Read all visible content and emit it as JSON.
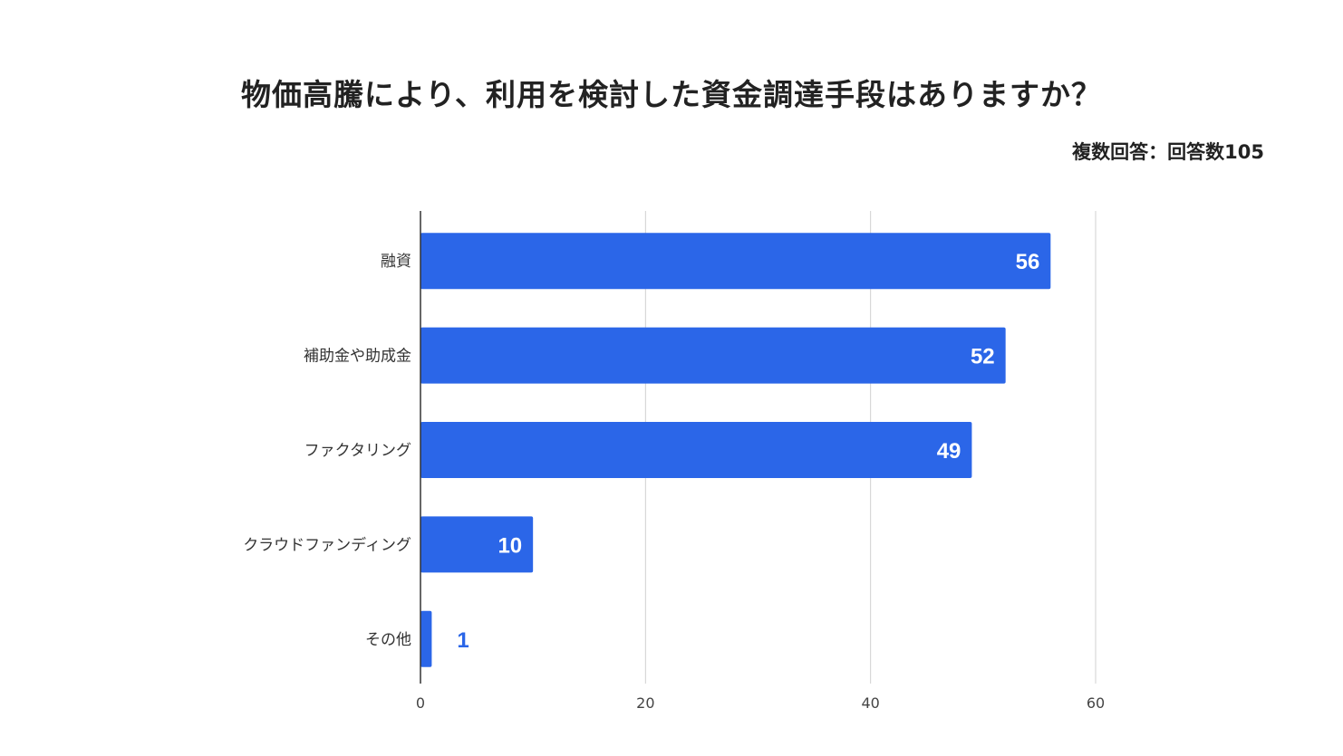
{
  "chart_data": {
    "type": "bar",
    "orientation": "horizontal",
    "title": "物価高騰により、利用を検討した資金調達手段はありますか？",
    "subtitle": "複数回答：回答数105",
    "categories": [
      "融資",
      "補助金や助成金",
      "ファクタリング",
      "クラウドファンディング",
      "その他"
    ],
    "values": [
      56,
      52,
      49,
      10,
      1
    ],
    "xlim": [
      0,
      60
    ],
    "xticks": [
      "0",
      "20",
      "40",
      "60"
    ],
    "grid": true,
    "bar_color": "#2b66e8",
    "label_inside_color": "#ffffff",
    "label_outside_color": "#2b66e8"
  }
}
